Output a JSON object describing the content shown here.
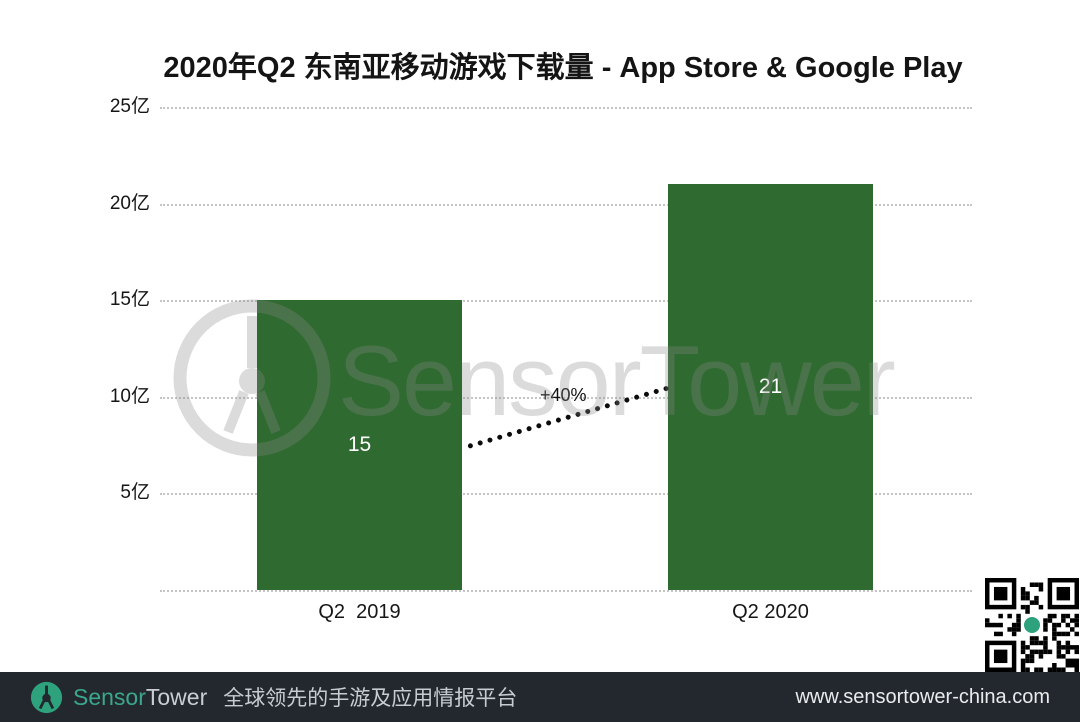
{
  "chart_data": {
    "type": "bar",
    "title": "2020年Q2 东南亚移动游戏下载量 - App Store & Google Play",
    "categories": [
      "Q2  2019",
      "Q2 2020"
    ],
    "values": [
      15,
      21
    ],
    "bar_labels": [
      "15",
      "21"
    ],
    "unit": "亿",
    "ylabel": "",
    "xlabel": "",
    "ylim": [
      0,
      25
    ],
    "y_ticks": [
      "25亿",
      "20亿",
      "15亿",
      "10亿",
      "5亿"
    ],
    "y_tick_values": [
      25,
      20,
      15,
      10,
      5,
      0
    ],
    "grid": "horizontal dotted",
    "legend": "none",
    "annotation": "+40%",
    "bar_color": "#2F6A30",
    "annotation_meaning": "growth from Q2 2019 to Q2 2020"
  },
  "watermark": {
    "text": "SensorTower",
    "color": "#8a8a8a"
  },
  "footer": {
    "brand_sensor": "Sensor",
    "brand_tower": "Tower",
    "tagline": "全球领先的手游及应用情报平台",
    "url": "www.sensortower-china.com",
    "bg_color": "#23282E",
    "teal_color": "#2EA17D"
  }
}
